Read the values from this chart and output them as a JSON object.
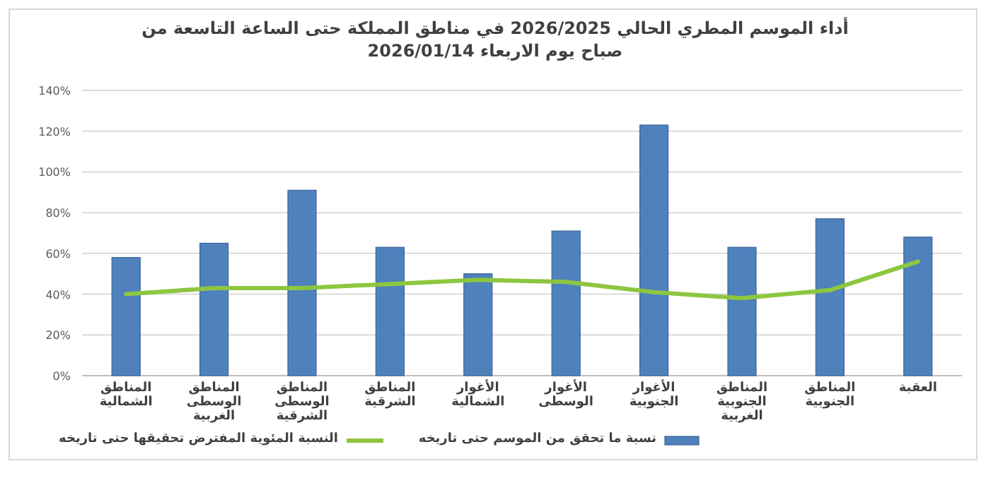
{
  "chart_data": {
    "type": "bar",
    "title": "أداء الموسم المطري الحالي 2026/2025 في مناطق المملكة حتى الساعة التاسعة من صباح يوم الاربعاء 2026/01/14",
    "categories": [
      "المناطق الشمالية",
      "المناطق الوسطى الغربية",
      "المناطق الوسطى الشرقية",
      "المناطق الشرقية",
      "الأغوار الشمالية",
      "الأغوار الوسطى",
      "الأغوار الجنوبية",
      "المناطق الجنوبية الغربية",
      "المناطق الجنوبية",
      "العقبة"
    ],
    "series": [
      {
        "name": "نسبة ما تحقق من الموسم حتى تاريخه",
        "color": "#4f81bd",
        "values": [
          58,
          65,
          91,
          63,
          50,
          71,
          123,
          63,
          77,
          68
        ]
      },
      {
        "name": "النسبة المئوية المفترض تحقيقها حتى تاريخه",
        "type": "line",
        "color": "#8dc63f",
        "values": [
          40,
          43,
          43,
          45,
          47,
          46,
          41,
          38,
          42,
          56
        ]
      }
    ],
    "ylim": [
      0,
      140
    ],
    "yticks": [
      {
        "value": 0,
        "label": "0%"
      },
      {
        "value": 20,
        "label": "20%"
      },
      {
        "value": 40,
        "label": "40%"
      },
      {
        "value": 60,
        "label": "60%"
      },
      {
        "value": 80,
        "label": "80%"
      },
      {
        "value": 100,
        "label": "100%"
      },
      {
        "value": 120,
        "label": "120%"
      },
      {
        "value": 140,
        "label": "140%"
      }
    ],
    "grid": "y",
    "legend": "bottom"
  }
}
